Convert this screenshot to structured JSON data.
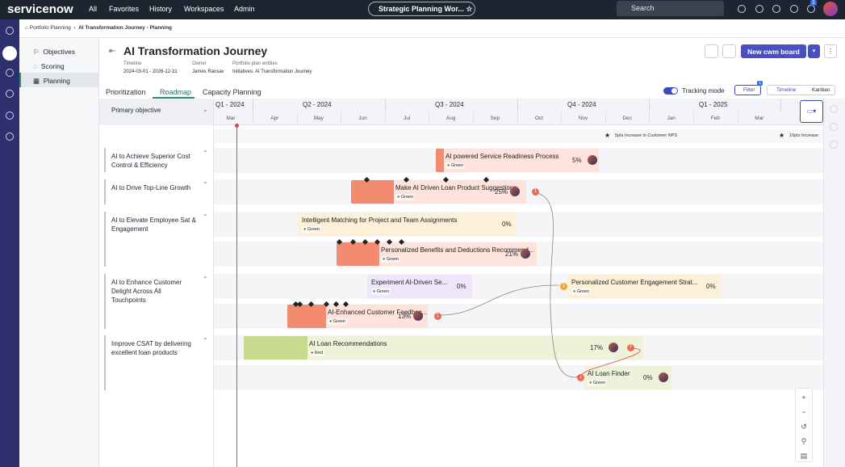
{
  "topbar": {
    "logo": "servicenow",
    "nav": [
      "All",
      "Favorites",
      "History",
      "Workspaces",
      "Admin"
    ],
    "workspace": "Strategic Planning Wor...",
    "search": "Search",
    "notifications": "1"
  },
  "breadcrumb": [
    "Portfolio Planning",
    "AI Transformation Journey - Planning"
  ],
  "sidebar": [
    "Objectives",
    "Scoring",
    "Planning"
  ],
  "header": {
    "title": "AI Transformation Journey",
    "fields": [
      {
        "label": "Timeline",
        "value": "2024-03-01 - 2026-12-31"
      },
      {
        "label": "Owner",
        "value": "James Ransav"
      },
      {
        "label": "Portfolio plan entities",
        "value": "Initiatives: AI Transformation Journey"
      }
    ],
    "button": "New cwm board"
  },
  "tabs": [
    "Prioritization",
    "Roadmap",
    "Capacity Planning"
  ],
  "toolbar": {
    "tracking": "Tracking mode",
    "filter": "Filter",
    "filter_count": "1",
    "views": [
      "Timeline",
      "Kanban"
    ]
  },
  "roadmap": {
    "column_header": "Primary objective",
    "quarters": [
      "Q1 - 2024",
      "Q2 - 2024",
      "Q3 - 2024",
      "Q4 - 2024",
      "Q1 - 2025"
    ],
    "months": [
      "Mar",
      "Apr",
      "May",
      "Jun",
      "Jul",
      "Aug",
      "Sep",
      "Oct",
      "Nov",
      "Dec",
      "Jan",
      "Feb",
      "Mar"
    ],
    "milestones": [
      "5pts Increase in Customer NPS",
      "10pts Increase"
    ],
    "objectives": [
      "AI to Achieve Superior Cost Control & Efficiency",
      "AI to Drive Top-Line Growth",
      "AI to Elevate Employee Sat & Engagement",
      "AI to Enhance Customer Delight Across All Touchpoints",
      "Improve CSAT by delivering excellent loan products"
    ],
    "bars": [
      {
        "name": "AI powered Service Readiness Process",
        "status": "Green",
        "progress": "5%"
      },
      {
        "name": "Make AI Driven Loan Product Suggestions",
        "status": "Green",
        "progress": "25%",
        "badge": "1"
      },
      {
        "name": "Intelligent Matching for Project and Team Assignments",
        "status": "Green",
        "progress": "0%"
      },
      {
        "name": "Personalized Benefits and Deductions Recommend...",
        "status": "Green",
        "progress": "21%"
      },
      {
        "name": "Experiment AI-Driven Se...",
        "status": "Green",
        "progress": "0%"
      },
      {
        "name": "Personalized Customer Engagement Strat...",
        "status": "Green",
        "progress": "0%",
        "badge": "1"
      },
      {
        "name": "AI-Enhanced Customer Feedbac...",
        "status": "Green",
        "progress": "13%",
        "badge": "1"
      },
      {
        "name": "AI Loan Recommendations",
        "status": "Red",
        "progress": "17%",
        "badge": "1"
      },
      {
        "name": "AI Loan Finder",
        "status": "Green",
        "progress": "0%",
        "badge": "1"
      }
    ]
  }
}
